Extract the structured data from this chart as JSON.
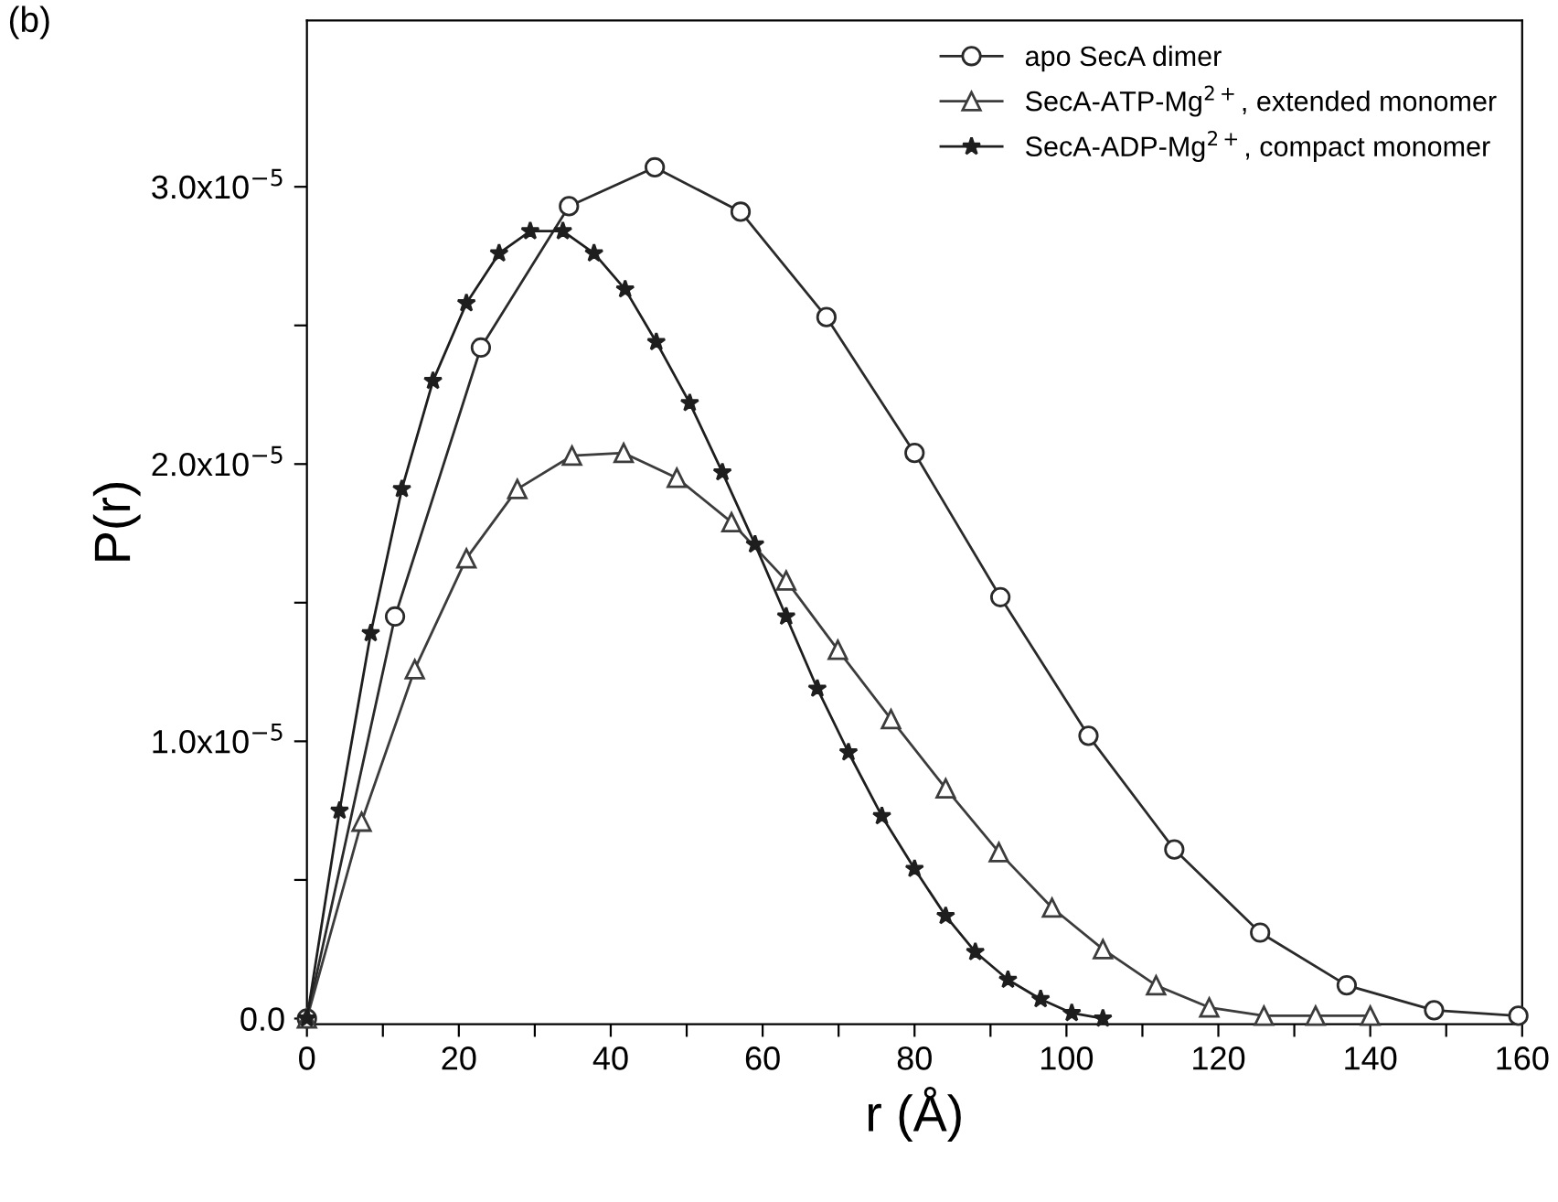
{
  "chart_data": {
    "type": "line",
    "xlabel": "r (Å)",
    "ylabel": "P(r)",
    "annotations": [
      "(b)"
    ],
    "xlim": [
      0,
      160
    ],
    "ylim": [
      -2e-07,
      3.6e-05
    ],
    "xticks": [
      0,
      {
        "value": 10,
        "label": null
      },
      20,
      {
        "value": 30,
        "label": null
      },
      40,
      {
        "value": 50,
        "label": null
      },
      60,
      {
        "value": 70,
        "label": null
      },
      80,
      {
        "value": 90,
        "label": null
      },
      100,
      {
        "value": 110,
        "label": null
      },
      120,
      {
        "value": 130,
        "label": null
      },
      140,
      {
        "value": 150,
        "label": null
      },
      160
    ],
    "yticks": [
      {
        "value": 0,
        "label": "0.0"
      },
      {
        "value": 5e-06,
        "label": null
      },
      {
        "value": 1e-05,
        "label": "1.0x10$^{−5}$"
      },
      {
        "value": 1.5e-05,
        "label": null
      },
      {
        "value": 2e-05,
        "label": "2.0x10$^{−5}$"
      },
      {
        "value": 2.5e-05,
        "label": null
      },
      {
        "value": 3e-05,
        "label": "3.0x10$^{−5}$"
      }
    ],
    "grid": false,
    "legend": "top right",
    "line_style": "solid",
    "series": [
      {
        "name": "apo SecA dimer",
        "color": "#2a2a2a",
        "marker": "circle",
        "x": [
          0,
          11.6,
          22.9,
          34.5,
          45.8,
          57.1,
          68.4,
          80,
          91.3,
          102.9,
          114.2,
          125.5,
          136.9,
          148.4,
          159.5
        ],
        "values": [
          0,
          1.45e-05,
          2.42e-05,
          2.93e-05,
          3.07e-05,
          2.91e-05,
          2.53e-05,
          2.04e-05,
          1.52e-05,
          1.02e-05,
          6.1e-06,
          3.1e-06,
          1.2e-06,
          3e-07,
          1e-07
        ]
      },
      {
        "name": "SecA-ATP-Mg$^{2+}$, extended monomer",
        "color": "#3c3c3c",
        "marker": "triangle",
        "x": [
          0,
          7.2,
          14.2,
          21,
          27.7,
          34.9,
          41.7,
          48.7,
          55.9,
          63.1,
          69.9,
          76.9,
          84.1,
          91.1,
          98.1,
          104.8,
          111.8,
          118.8,
          126,
          132.8,
          140
        ],
        "values": [
          0,
          7.1e-06,
          1.26e-05,
          1.66e-05,
          1.91e-05,
          2.03e-05,
          2.04e-05,
          1.95e-05,
          1.79e-05,
          1.58e-05,
          1.33e-05,
          1.08e-05,
          8.3e-06,
          6e-06,
          4e-06,
          2.5e-06,
          1.2e-06,
          4e-07,
          1e-07,
          1e-07,
          1e-07
        ]
      },
      {
        "name": "SecA-ADP-Mg$^{2+}$, compact monomer",
        "color": "#1e1e1e",
        "marker": "star",
        "x": [
          0,
          4.3,
          8.4,
          12.5,
          16.6,
          21,
          25.3,
          29.4,
          33.7,
          37.8,
          41.9,
          46,
          50.4,
          54.7,
          59,
          63.1,
          67.2,
          71.3,
          75.7,
          80,
          84.1,
          88,
          92.3,
          96.6,
          100.7,
          104.8
        ],
        "values": [
          0,
          7.5e-06,
          1.39e-05,
          1.91e-05,
          2.3e-05,
          2.58e-05,
          2.76e-05,
          2.84e-05,
          2.84e-05,
          2.76e-05,
          2.63e-05,
          2.44e-05,
          2.22e-05,
          1.97e-05,
          1.71e-05,
          1.45e-05,
          1.19e-05,
          9.6e-06,
          7.3e-06,
          5.4e-06,
          3.7e-06,
          2.4e-06,
          1.4e-06,
          7e-07,
          2e-07,
          0
        ]
      }
    ]
  }
}
